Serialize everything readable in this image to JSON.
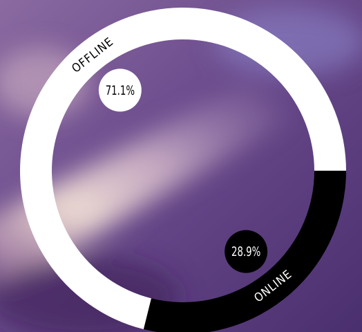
{
  "chart_data": {
    "type": "donut",
    "categories": [
      "OFFLINE",
      "ONLINE"
    ],
    "values": [
      71.1,
      28.9
    ],
    "value_labels": [
      "71.1%",
      "28.9%"
    ],
    "colors": [
      "#ffffff",
      "#000000"
    ]
  }
}
